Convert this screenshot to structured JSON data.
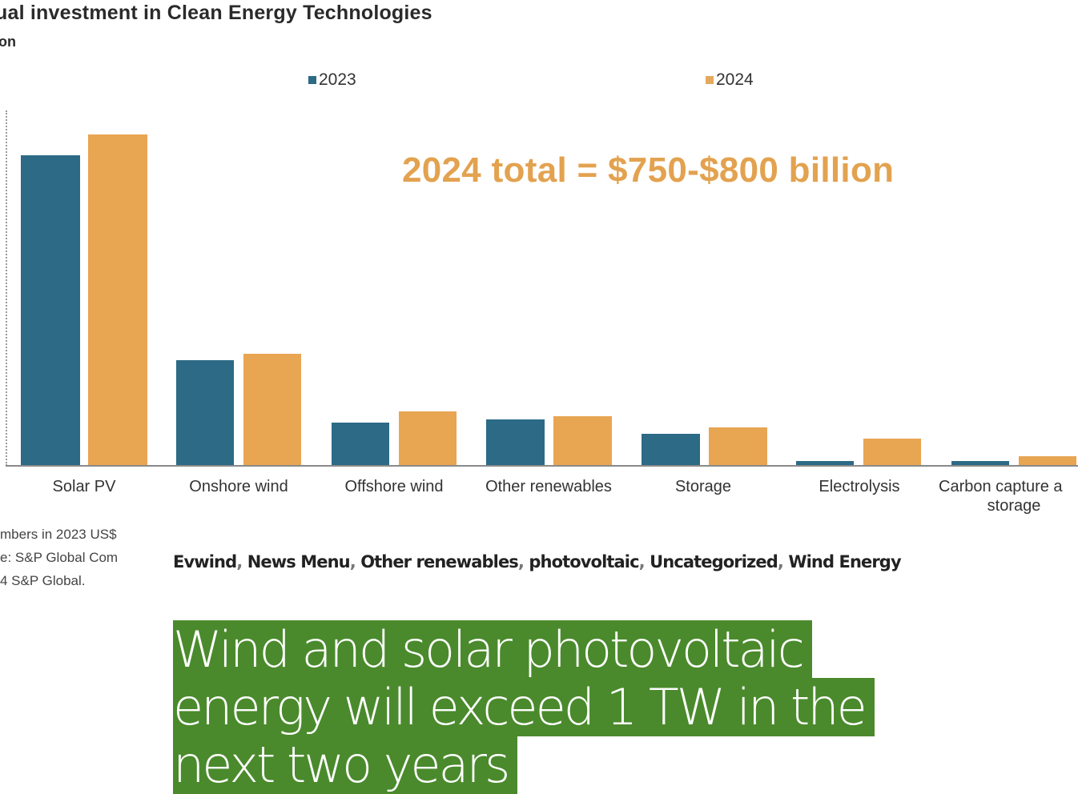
{
  "chart_data": {
    "type": "bar",
    "title": "Annual investment in Clean Energy Technologies",
    "title_visible": "ual investment in Clean Energy Technologies",
    "subtitle_visible": "on",
    "xlabel": "",
    "ylabel": "",
    "categories": [
      "Solar PV",
      "Onshore wind",
      "Offshore wind",
      "Other renewables",
      "Storage",
      "Electrolysis",
      "Carbon capture and storage"
    ],
    "series": [
      {
        "name": "2023",
        "color": "#2c6a86",
        "values": [
          388,
          132,
          54,
          58,
          40,
          6,
          6
        ]
      },
      {
        "name": "2024",
        "color": "#e8a552",
        "values": [
          414,
          140,
          68,
          62,
          48,
          34,
          12
        ]
      }
    ],
    "units_note": "approx. US$ billion (estimated from bar heights; no y-axis ticks shown)",
    "ylim": [
      0,
      450
    ],
    "grid": false,
    "legend_position": "top",
    "annotations": [
      "2024 total = $750-$800 billion"
    ],
    "footnotes_visible": [
      "mbers in 2023 US$",
      "e: S&P Global Com",
      "4 S&P Global."
    ]
  },
  "chart": {
    "title": "ual investment in Clean Energy Technologies",
    "subtitle": "on",
    "legend": [
      {
        "label": "2023",
        "color": "#2c6a86"
      },
      {
        "label": "2024",
        "color": "#e3a95c"
      }
    ],
    "annotation": "2024 total = $750-$800 billion",
    "category_labels": [
      "Solar PV",
      "Onshore wind",
      "Offshore wind",
      "Other renewables",
      "Storage",
      "Electrolysis",
      "Carbon capture a",
      "storage"
    ],
    "footnotes": [
      "mbers in 2023 US$",
      "e: S&P Global Com",
      "4 S&P Global."
    ]
  },
  "article": {
    "categories": [
      "Evwind",
      "News Menu",
      "Other renewables",
      "photovoltaic",
      "Uncategorized",
      "Wind Energy"
    ],
    "separator": ", ",
    "headline": "Wind and solar photovoltaic energy will exceed 1 TW in the next two years",
    "headline_bg": "#4a8a2c"
  }
}
